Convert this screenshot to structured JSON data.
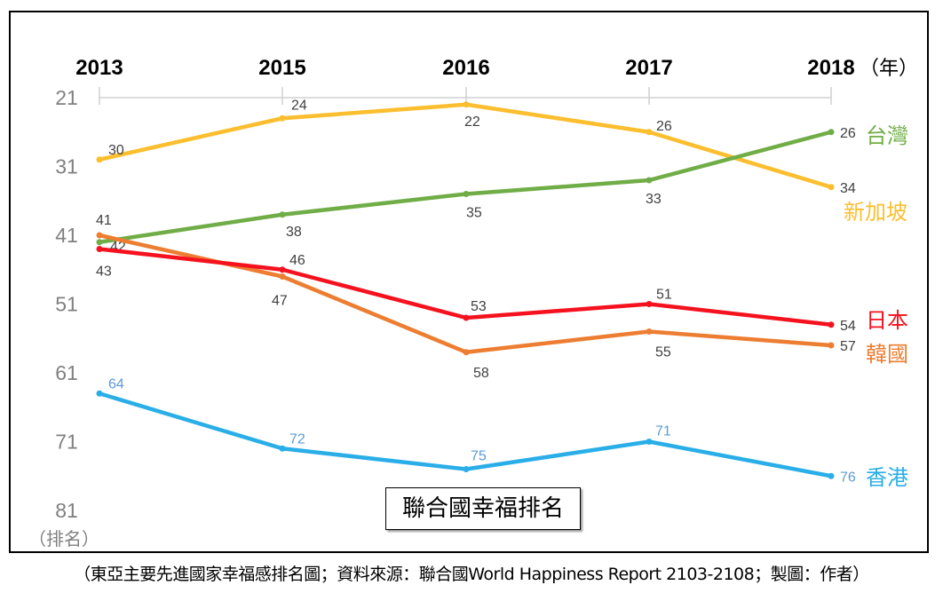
{
  "chart_data": {
    "type": "line",
    "title": "聯合國幸福排名",
    "categories": [
      "2013",
      "2015",
      "2016",
      "2017",
      "2018"
    ],
    "x_unit": "（年）",
    "ylabel": "（排名）",
    "yticks": [
      21,
      31,
      41,
      51,
      61,
      71,
      81
    ],
    "ylim": [
      21,
      81
    ],
    "y_inverted": true,
    "grid": false,
    "series": [
      {
        "name": "新加坡",
        "color": "#FBBE2E",
        "label_color": "#404040",
        "values": [
          30,
          24,
          22,
          26,
          34
        ]
      },
      {
        "name": "台灣",
        "color": "#70AD47",
        "label_color": "#404040",
        "values": [
          42,
          38,
          35,
          33,
          26
        ]
      },
      {
        "name": "韓國",
        "color": "#ED7D31",
        "label_color": "#404040",
        "values": [
          41,
          47,
          58,
          55,
          57
        ]
      },
      {
        "name": "日本",
        "color": "#F5121E",
        "label_color": "#404040",
        "values": [
          43,
          46,
          53,
          51,
          54
        ]
      },
      {
        "name": "香港",
        "color": "#29AEE8",
        "label_color": "#5B9BD5",
        "values": [
          64,
          72,
          75,
          71,
          76
        ]
      }
    ]
  },
  "caption": "（東亞主要先進國家幸福感排名圖；資料來源：聯合國World Happiness Report 2103-2108；製圖：作者）"
}
